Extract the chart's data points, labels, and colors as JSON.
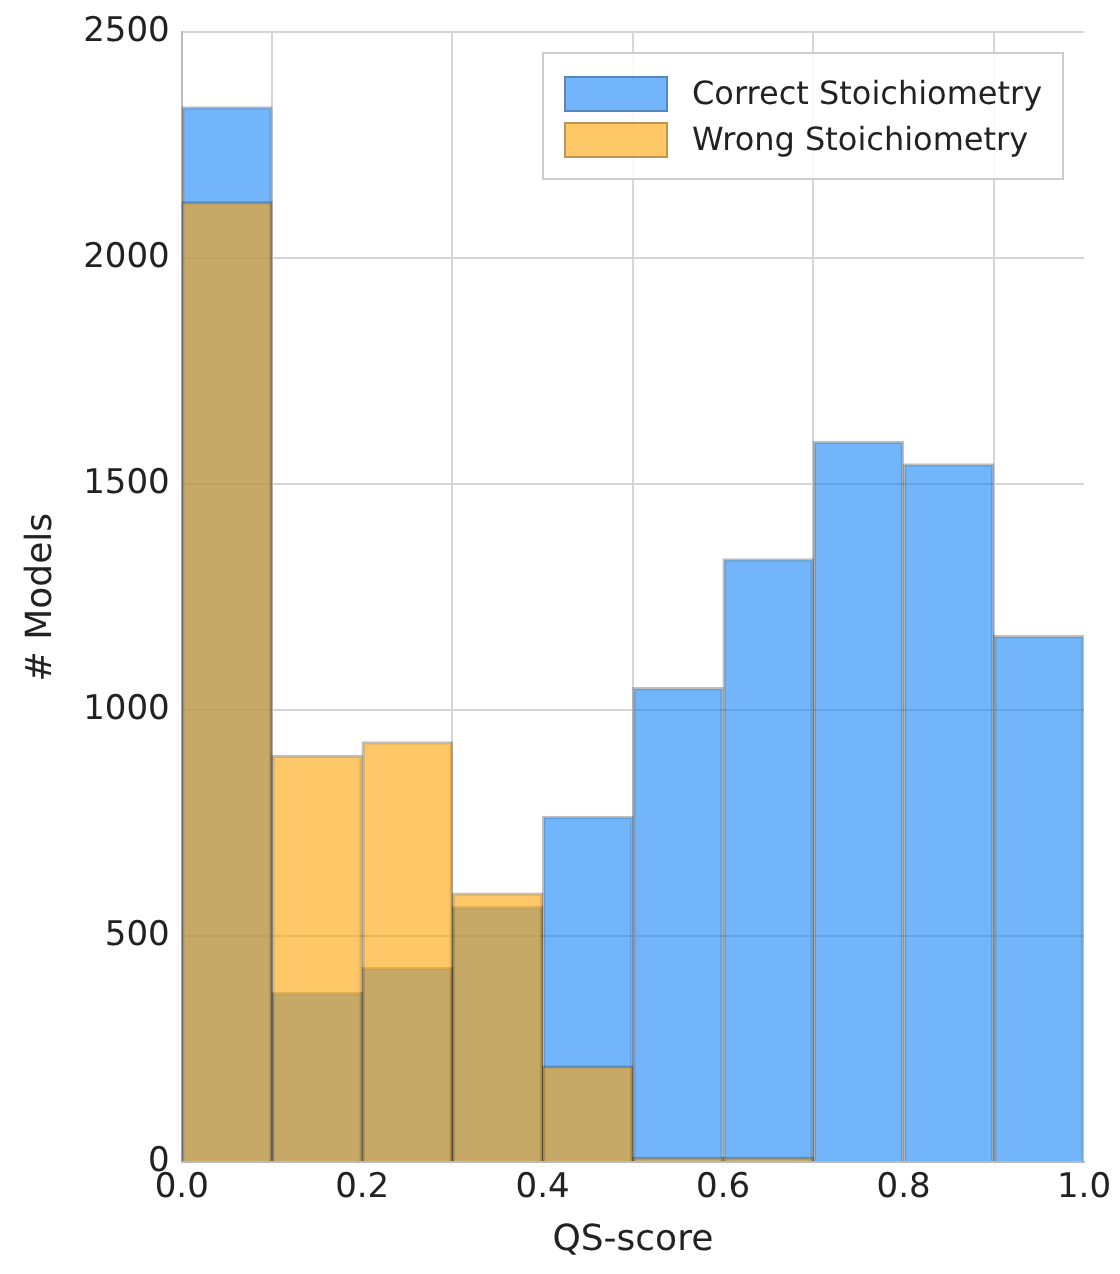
{
  "chart_data": {
    "type": "histogram",
    "xlabel": "QS-score",
    "ylabel": "# Models",
    "bins": [
      0,
      0.1,
      0.2,
      0.3,
      0.4,
      0.5,
      0.6,
      0.7,
      0.8,
      0.9,
      1.0
    ],
    "series": [
      {
        "name": "Correct Stoichiometry",
        "color": "#73b5fa",
        "values": [
          2335,
          375,
          430,
          565,
          765,
          1050,
          1335,
          1595,
          1545,
          1165
        ]
      },
      {
        "name": "Wrong Stoichiometry",
        "color": "#fec768",
        "values": [
          2125,
          900,
          930,
          595,
          212,
          10,
          10,
          0,
          0,
          0
        ]
      }
    ],
    "xlim": [
      0,
      1.0
    ],
    "xticks": [
      {
        "value": 0,
        "label": "0.0"
      },
      {
        "value": 0.2,
        "label": "0.2"
      },
      {
        "value": 0.4,
        "label": "0.4"
      },
      {
        "value": 0.6,
        "label": "0.6"
      },
      {
        "value": 0.8,
        "label": "0.8"
      },
      {
        "value": 1.0,
        "label": "1.0"
      }
    ],
    "ylim": [
      0,
      2500
    ],
    "yticks": [
      0,
      500,
      1000,
      1500,
      2000,
      2500
    ],
    "grid": true,
    "legend": "top right"
  }
}
